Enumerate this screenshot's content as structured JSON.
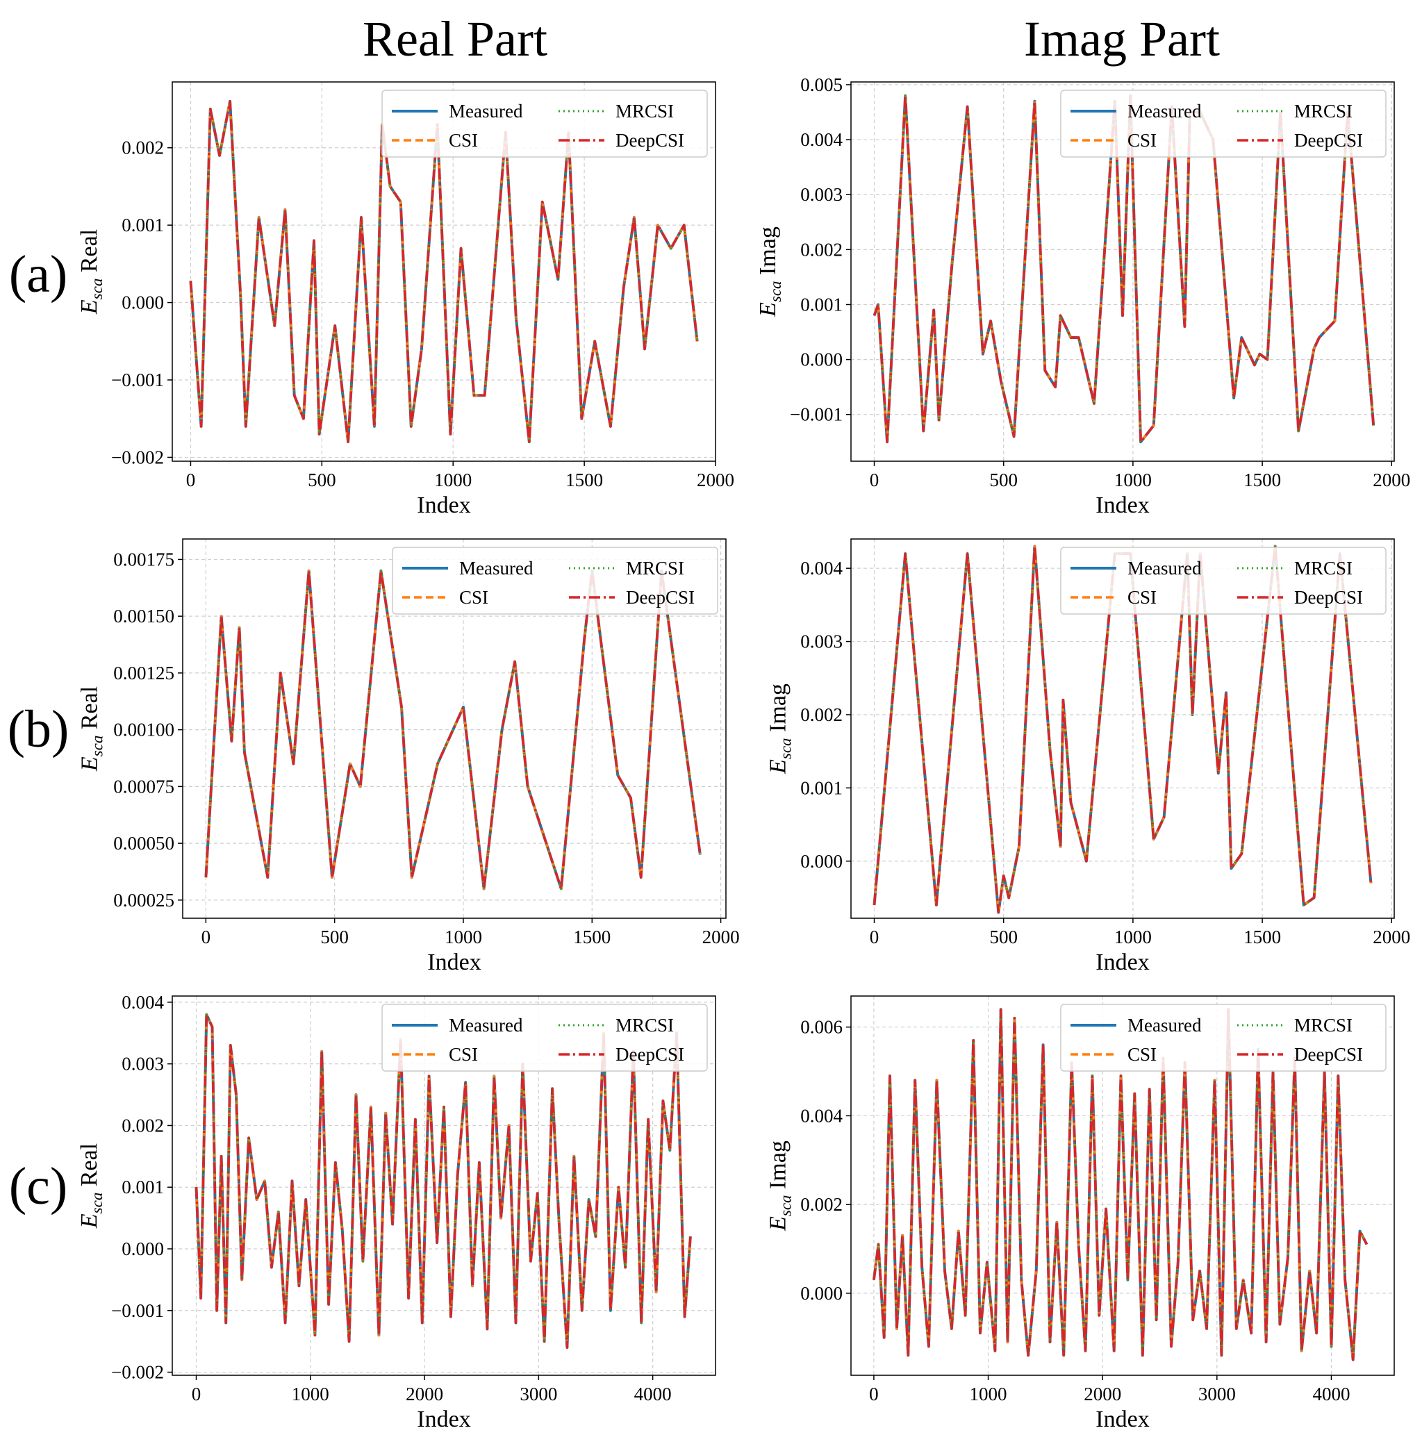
{
  "figure": {
    "column_titles": [
      "Real Part",
      "Imag Part"
    ],
    "row_labels": [
      "(a)",
      "(b)",
      "(c)"
    ]
  },
  "colors": {
    "Measured": "#1f77b4",
    "CSI": "#ff7f0e",
    "MRCSI": "#2ca02c",
    "DeepCSI": "#d62728"
  },
  "legend": [
    "Measured",
    "CSI",
    "MRCSI",
    "DeepCSI"
  ],
  "chart_data": [
    {
      "id": "a-real",
      "type": "line",
      "title": "Real Part",
      "xlabel": "Index",
      "ylabel_main": "E",
      "ylabel_sub": "sca",
      "ylabel_rest": " Real",
      "xlim": [
        -70,
        2000
      ],
      "ylim": [
        -0.00205,
        0.00285
      ],
      "xticks": [
        0,
        500,
        1000,
        1500,
        2000
      ],
      "xtick_labels": [
        "0",
        "500",
        "1000",
        "1500",
        "2000"
      ],
      "yticks": [
        -0.002,
        -0.001,
        0.0,
        0.001,
        0.002
      ],
      "ytick_labels": [
        "−0.002",
        "−0.001",
        "0.000",
        "0.001",
        "0.002"
      ],
      "legend_loc": "upper right",
      "series_names": [
        "Measured",
        "CSI",
        "MRCSI",
        "DeepCSI"
      ],
      "x": [
        0,
        40,
        75,
        110,
        150,
        190,
        210,
        260,
        320,
        360,
        395,
        430,
        470,
        490,
        550,
        600,
        650,
        700,
        730,
        760,
        800,
        840,
        880,
        940,
        990,
        1030,
        1080,
        1120,
        1200,
        1240,
        1290,
        1340,
        1400,
        1440,
        1490,
        1540,
        1600,
        1650,
        1690,
        1730,
        1780,
        1830,
        1880,
        1930
      ],
      "y": [
        0.00028,
        -0.0016,
        0.0025,
        0.0019,
        0.0026,
        0.0001,
        -0.0016,
        0.0011,
        -0.0003,
        0.0012,
        -0.0012,
        -0.0015,
        0.0008,
        -0.0017,
        -0.0003,
        -0.0018,
        0.0011,
        -0.0016,
        0.0023,
        0.0015,
        0.0013,
        -0.0016,
        -0.0006,
        0.0023,
        -0.0017,
        0.0007,
        -0.0012,
        -0.0012,
        0.0022,
        -0.0002,
        -0.0018,
        0.0013,
        0.0003,
        0.0022,
        -0.0015,
        -0.0005,
        -0.0016,
        0.0002,
        0.0011,
        -0.0006,
        0.001,
        0.0007,
        0.001,
        -0.0005
      ]
    },
    {
      "id": "a-imag",
      "type": "line",
      "title": "Imag Part",
      "xlabel": "Index",
      "ylabel_main": "E",
      "ylabel_sub": "sca",
      "ylabel_rest": " Imag",
      "xlim": [
        -90,
        2010
      ],
      "ylim": [
        -0.00185,
        0.00505
      ],
      "xticks": [
        0,
        500,
        1000,
        1500,
        2000
      ],
      "xtick_labels": [
        "0",
        "500",
        "1000",
        "1500",
        "2000"
      ],
      "yticks": [
        -0.001,
        0.0,
        0.001,
        0.002,
        0.003,
        0.004,
        0.005
      ],
      "ytick_labels": [
        "−0.001",
        "0.000",
        "0.001",
        "0.002",
        "0.003",
        "0.004",
        "0.005"
      ],
      "legend_loc": "upper right",
      "series_names": [
        "Measured",
        "CSI",
        "MRCSI",
        "DeepCSI"
      ],
      "x": [
        0,
        15,
        50,
        120,
        190,
        230,
        250,
        300,
        360,
        420,
        450,
        490,
        540,
        620,
        660,
        700,
        720,
        760,
        790,
        850,
        930,
        960,
        990,
        1030,
        1080,
        1150,
        1200,
        1220,
        1260,
        1310,
        1390,
        1420,
        1470,
        1490,
        1520,
        1570,
        1640,
        1700,
        1720,
        1780,
        1830,
        1930
      ],
      "y": [
        0.0008,
        0.001,
        -0.0015,
        0.0048,
        -0.0013,
        0.0009,
        -0.0011,
        0.0017,
        0.0046,
        0.0001,
        0.0007,
        -0.0004,
        -0.0014,
        0.0047,
        -0.0002,
        -0.0005,
        0.0008,
        0.0004,
        0.0004,
        -0.0008,
        0.0047,
        0.0008,
        0.0048,
        -0.0015,
        -0.0012,
        0.0046,
        0.0006,
        0.0045,
        0.0045,
        0.004,
        -0.0007,
        0.0004,
        -0.0001,
        0.0001,
        0.0,
        0.0045,
        -0.0013,
        0.0002,
        0.0004,
        0.0007,
        0.0045,
        -0.0012
      ]
    },
    {
      "id": "b-real",
      "type": "line",
      "title": "",
      "xlabel": "Index",
      "ylabel_main": "E",
      "ylabel_sub": "sca",
      "ylabel_rest": " Real",
      "xlim": [
        -90,
        2020
      ],
      "ylim": [
        0.00017,
        0.00184
      ],
      "xticks": [
        0,
        500,
        1000,
        1500,
        2000
      ],
      "xtick_labels": [
        "0",
        "500",
        "1000",
        "1500",
        "2000"
      ],
      "yticks": [
        0.00025,
        0.0005,
        0.00075,
        0.001,
        0.00125,
        0.0015,
        0.00175
      ],
      "ytick_labels": [
        "0.00025",
        "0.00050",
        "0.00075",
        "0.00100",
        "0.00125",
        "0.00150",
        "0.00175"
      ],
      "legend_loc": "upper right",
      "series_names": [
        "Measured",
        "CSI",
        "MRCSI",
        "DeepCSI"
      ],
      "x": [
        0,
        60,
        100,
        130,
        150,
        240,
        290,
        340,
        400,
        490,
        560,
        600,
        680,
        720,
        760,
        800,
        900,
        1000,
        1080,
        1150,
        1200,
        1250,
        1380,
        1470,
        1500,
        1600,
        1650,
        1690,
        1770,
        1920
      ],
      "y": [
        0.00035,
        0.0015,
        0.00095,
        0.00145,
        0.0009,
        0.00035,
        0.00125,
        0.00085,
        0.0017,
        0.00035,
        0.00085,
        0.00075,
        0.0017,
        0.0014,
        0.0011,
        0.00035,
        0.00085,
        0.0011,
        0.0003,
        0.001,
        0.0013,
        0.00075,
        0.0003,
        0.0014,
        0.0017,
        0.0008,
        0.0007,
        0.00035,
        0.0017,
        0.00045
      ]
    },
    {
      "id": "b-imag",
      "type": "line",
      "title": "",
      "xlabel": "Index",
      "ylabel_main": "E",
      "ylabel_sub": "sca",
      "ylabel_rest": " Imag",
      "xlim": [
        -90,
        2010
      ],
      "ylim": [
        -0.00078,
        0.0044
      ],
      "xticks": [
        0,
        500,
        1000,
        1500,
        2000
      ],
      "xtick_labels": [
        "0",
        "500",
        "1000",
        "1500",
        "2000"
      ],
      "yticks": [
        0.0,
        0.001,
        0.002,
        0.003,
        0.004
      ],
      "ytick_labels": [
        "0.000",
        "0.001",
        "0.002",
        "0.003",
        "0.004"
      ],
      "legend_loc": "upper right",
      "series_names": [
        "Measured",
        "CSI",
        "MRCSI",
        "DeepCSI"
      ],
      "x": [
        0,
        120,
        240,
        360,
        480,
        500,
        520,
        560,
        620,
        680,
        720,
        730,
        760,
        820,
        930,
        990,
        1080,
        1120,
        1210,
        1230,
        1260,
        1330,
        1360,
        1380,
        1420,
        1550,
        1660,
        1700,
        1800,
        1920
      ],
      "y": [
        -0.0006,
        0.0042,
        -0.0006,
        0.0042,
        -0.0007,
        -0.0002,
        -0.0005,
        0.0002,
        0.0043,
        0.0015,
        0.0002,
        0.0022,
        0.0008,
        0.0,
        0.0042,
        0.0042,
        0.0003,
        0.0006,
        0.0042,
        0.002,
        0.0042,
        0.0012,
        0.0023,
        -0.0001,
        0.0001,
        0.0043,
        -0.0006,
        -0.0005,
        0.0042,
        -0.0003
      ]
    },
    {
      "id": "c-real",
      "type": "line",
      "title": "",
      "xlabel": "Index",
      "ylabel_main": "E",
      "ylabel_sub": "sca",
      "ylabel_rest": " Real",
      "xlim": [
        -210,
        4550
      ],
      "ylim": [
        -0.00205,
        0.0041
      ],
      "xticks": [
        0,
        1000,
        2000,
        3000,
        4000
      ],
      "xtick_labels": [
        "0",
        "1000",
        "2000",
        "3000",
        "4000"
      ],
      "yticks": [
        -0.002,
        -0.001,
        0.0,
        0.001,
        0.002,
        0.003,
        0.004
      ],
      "ytick_labels": [
        "−0.002",
        "−0.001",
        "0.000",
        "0.001",
        "0.002",
        "0.003",
        "0.004"
      ],
      "legend_loc": "upper right",
      "series_names": [
        "Measured",
        "CSI",
        "MRCSI",
        "DeepCSI"
      ],
      "x": [
        0,
        40,
        90,
        140,
        180,
        220,
        260,
        300,
        350,
        400,
        460,
        530,
        600,
        660,
        720,
        780,
        840,
        900,
        960,
        1040,
        1100,
        1160,
        1220,
        1280,
        1340,
        1400,
        1460,
        1530,
        1600,
        1660,
        1720,
        1790,
        1860,
        1920,
        1980,
        2040,
        2110,
        2170,
        2230,
        2290,
        2360,
        2420,
        2480,
        2550,
        2610,
        2670,
        2740,
        2800,
        2860,
        2930,
        2990,
        3050,
        3120,
        3180,
        3250,
        3310,
        3380,
        3440,
        3500,
        3570,
        3630,
        3700,
        3760,
        3830,
        3900,
        3960,
        4030,
        4090,
        4150,
        4210,
        4280,
        4330
      ],
      "y": [
        0.001,
        -0.0008,
        0.0038,
        0.0036,
        -0.001,
        0.0015,
        -0.0012,
        0.0033,
        0.0025,
        -0.0005,
        0.0018,
        0.0008,
        0.0011,
        -0.0003,
        0.0006,
        -0.0012,
        0.0011,
        -0.0006,
        0.0008,
        -0.0014,
        0.0032,
        -0.0009,
        0.0014,
        0.0003,
        -0.0015,
        0.0025,
        -0.0002,
        0.0023,
        -0.0014,
        0.0022,
        0.0004,
        0.0034,
        -0.0008,
        0.0021,
        -0.0012,
        0.0028,
        0.0001,
        0.0023,
        -0.0011,
        0.0012,
        0.0027,
        -0.0006,
        0.0014,
        -0.0013,
        0.0028,
        0.0005,
        0.002,
        -0.0012,
        0.003,
        -0.0002,
        0.0009,
        -0.0015,
        0.0026,
        0.0004,
        -0.0016,
        0.0015,
        -0.001,
        0.0008,
        0.0002,
        0.0035,
        -0.001,
        0.001,
        -0.0003,
        0.0032,
        -0.0012,
        0.0021,
        -0.0007,
        0.0024,
        0.0016,
        0.0035,
        -0.0011,
        0.0002
      ]
    },
    {
      "id": "c-imag",
      "type": "line",
      "title": "",
      "xlabel": "Index",
      "ylabel_main": "E",
      "ylabel_sub": "sca",
      "ylabel_rest": " Imag",
      "xlim": [
        -200,
        4550
      ],
      "ylim": [
        -0.00185,
        0.0067
      ],
      "xticks": [
        0,
        1000,
        2000,
        3000,
        4000
      ],
      "xtick_labels": [
        "0",
        "1000",
        "2000",
        "3000",
        "4000"
      ],
      "yticks": [
        0.0,
        0.002,
        0.004,
        0.006
      ],
      "ytick_labels": [
        "0.000",
        "0.002",
        "0.004",
        "0.006"
      ],
      "legend_loc": "upper right",
      "series_names": [
        "Measured",
        "CSI",
        "MRCSI",
        "DeepCSI"
      ],
      "x": [
        0,
        40,
        90,
        140,
        200,
        250,
        300,
        360,
        420,
        480,
        550,
        620,
        680,
        740,
        800,
        870,
        930,
        990,
        1060,
        1110,
        1170,
        1230,
        1290,
        1350,
        1420,
        1480,
        1540,
        1600,
        1660,
        1730,
        1790,
        1850,
        1910,
        1970,
        2030,
        2100,
        2160,
        2220,
        2280,
        2350,
        2410,
        2470,
        2530,
        2600,
        2660,
        2720,
        2790,
        2850,
        2910,
        2980,
        3040,
        3100,
        3170,
        3230,
        3300,
        3360,
        3430,
        3490,
        3550,
        3620,
        3680,
        3740,
        3810,
        3870,
        3940,
        4000,
        4060,
        4120,
        4190,
        4250,
        4310
      ],
      "y": [
        0.0003,
        0.0011,
        -0.001,
        0.0049,
        -0.0008,
        0.0013,
        -0.0014,
        0.0048,
        0.0006,
        -0.0012,
        0.0048,
        0.0005,
        -0.0008,
        0.0014,
        -0.0005,
        0.0057,
        -0.0009,
        0.0007,
        -0.0013,
        0.0064,
        -0.0011,
        0.0062,
        0.0003,
        -0.0014,
        0.0005,
        0.0056,
        -0.0011,
        0.0016,
        -0.0014,
        0.0052,
        0.0011,
        -0.0013,
        0.0049,
        -0.0005,
        0.0019,
        -0.0013,
        0.0049,
        0.0003,
        0.0045,
        -0.0014,
        0.0046,
        -0.0006,
        0.0053,
        -0.0012,
        0.0007,
        0.0052,
        -0.0006,
        0.0005,
        -0.0008,
        0.0048,
        -0.0014,
        0.0064,
        -0.0008,
        0.0003,
        -0.0009,
        0.0055,
        -0.0011,
        0.005,
        -0.0007,
        0.0008,
        0.0053,
        -0.0013,
        0.0005,
        -0.0009,
        0.005,
        -0.0012,
        0.0049,
        0.0003,
        -0.0015,
        0.0014,
        0.0011
      ]
    }
  ]
}
